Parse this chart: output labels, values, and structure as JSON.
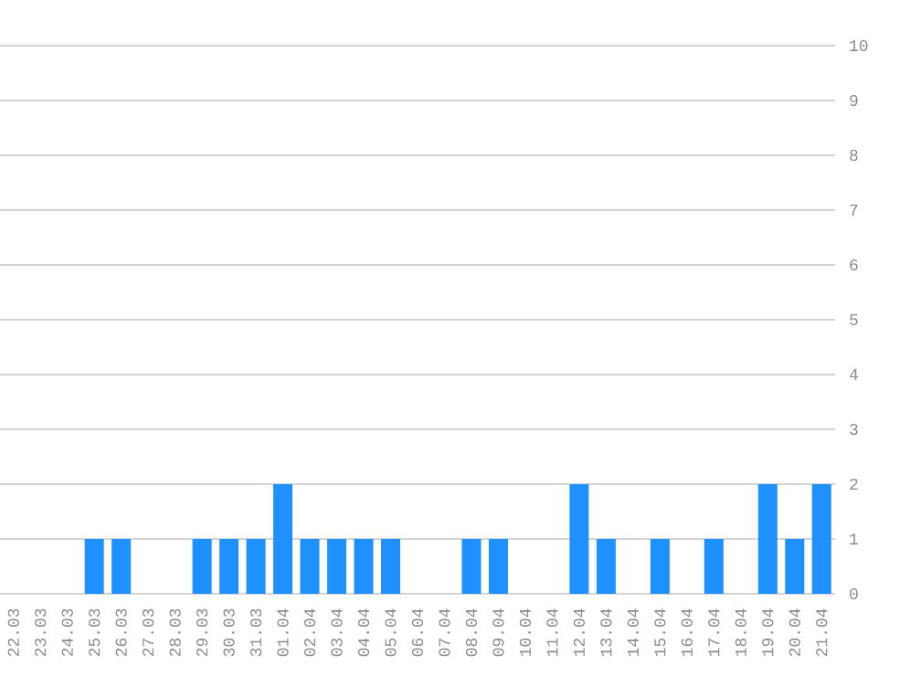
{
  "chart_data": {
    "type": "bar",
    "categories": [
      "22.03",
      "23.03",
      "24.03",
      "25.03",
      "26.03",
      "27.03",
      "28.03",
      "29.03",
      "30.03",
      "31.03",
      "01.04",
      "02.04",
      "03.04",
      "04.04",
      "05.04",
      "06.04",
      "07.04",
      "08.04",
      "09.04",
      "10.04",
      "11.04",
      "12.04",
      "13.04",
      "14.04",
      "15.04",
      "16.04",
      "17.04",
      "18.04",
      "19.04",
      "20.04",
      "21.04"
    ],
    "values": [
      0,
      0,
      0,
      1,
      1,
      0,
      0,
      1,
      1,
      1,
      2,
      1,
      1,
      1,
      1,
      0,
      0,
      1,
      1,
      0,
      0,
      2,
      1,
      0,
      1,
      0,
      1,
      0,
      2,
      1,
      2
    ],
    "color": "#1e90ff",
    "ylim": [
      0,
      10
    ],
    "yticks": [
      0,
      1,
      2,
      3,
      4,
      5,
      6,
      7,
      8,
      9,
      10
    ],
    "grid": "y"
  }
}
